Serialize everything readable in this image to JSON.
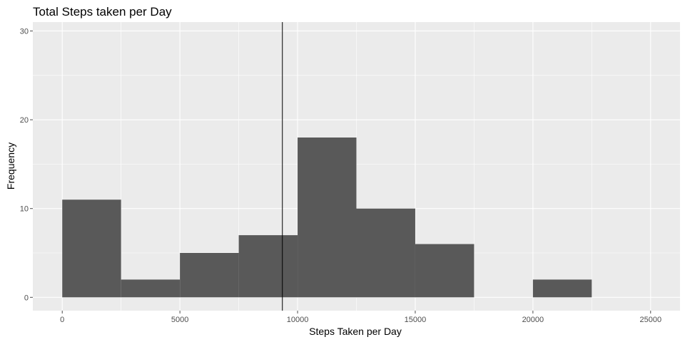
{
  "chart_data": {
    "type": "bar",
    "title": "Total Steps taken per Day",
    "xlabel": "Steps Taken per Day",
    "ylabel": "Frequency",
    "bin_width": 2500,
    "bins": [
      {
        "start": 0,
        "end": 2500,
        "count": 11
      },
      {
        "start": 2500,
        "end": 5000,
        "count": 2
      },
      {
        "start": 5000,
        "end": 7500,
        "count": 5
      },
      {
        "start": 7500,
        "end": 10000,
        "count": 7
      },
      {
        "start": 10000,
        "end": 12500,
        "count": 18
      },
      {
        "start": 12500,
        "end": 15000,
        "count": 10
      },
      {
        "start": 15000,
        "end": 17500,
        "count": 6
      },
      {
        "start": 17500,
        "end": 20000,
        "count": 0
      },
      {
        "start": 20000,
        "end": 22500,
        "count": 2
      },
      {
        "start": 22500,
        "end": 25000,
        "count": 0
      }
    ],
    "vline": {
      "x": 9354
    },
    "xlim": [
      -1250,
      26250
    ],
    "ylim": [
      -1.5,
      31
    ],
    "xticks": [
      0,
      5000,
      10000,
      15000,
      20000,
      25000
    ],
    "xtick_labels": [
      "0",
      "5000",
      "10000",
      "15000",
      "20000",
      "25000"
    ],
    "yticks": [
      0,
      10,
      20,
      30
    ],
    "ytick_labels": [
      "0",
      "10",
      "20",
      "30"
    ],
    "grid": true,
    "colors": {
      "panel": "#ebebeb",
      "grid": "#ffffff",
      "bar": "#595959",
      "vline": "#000000",
      "tick": "#4d4d4d"
    }
  }
}
